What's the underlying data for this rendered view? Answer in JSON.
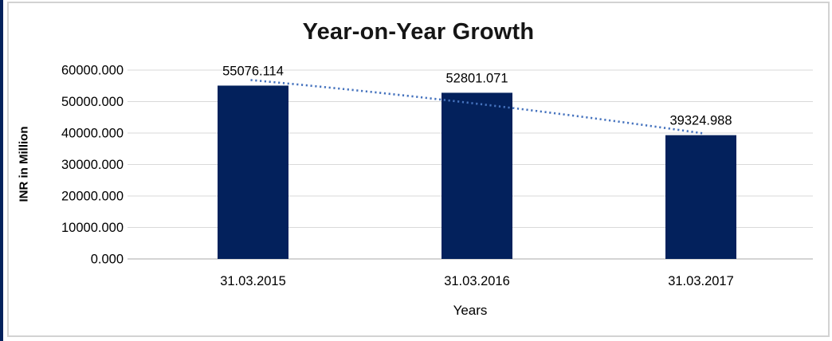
{
  "chart_data": {
    "type": "bar",
    "title": "Year-on-Year Growth",
    "xlabel": "Years",
    "ylabel": "INR in Million",
    "categories": [
      "31.03.2015",
      "31.03.2016",
      "31.03.2017"
    ],
    "values": [
      55076.114,
      52801.071,
      39324.988
    ],
    "data_labels": [
      "55076.114",
      "52801.071",
      "39324.988"
    ],
    "y_ticks": [
      {
        "label": "60000.000",
        "value": 60000
      },
      {
        "label": "50000.000",
        "value": 50000
      },
      {
        "label": "40000.000",
        "value": 40000
      },
      {
        "label": "30000.000",
        "value": 30000
      },
      {
        "label": "20000.000",
        "value": 20000
      },
      {
        "label": "10000.000",
        "value": 10000
      },
      {
        "label": "0.000",
        "value": 0
      }
    ],
    "ylim": [
      0,
      60000
    ],
    "grid": true,
    "legend": "none",
    "trendline": {
      "style": "dotted",
      "direction": "declining"
    },
    "colors": {
      "bar": "#03215c",
      "trendline": "#4673be",
      "gridline": "#d9d9d9",
      "axis_line": "#c6c6c6",
      "frame_border": "#d2d2d2",
      "left_strip": "#03215c",
      "title_text": "#151515"
    }
  }
}
